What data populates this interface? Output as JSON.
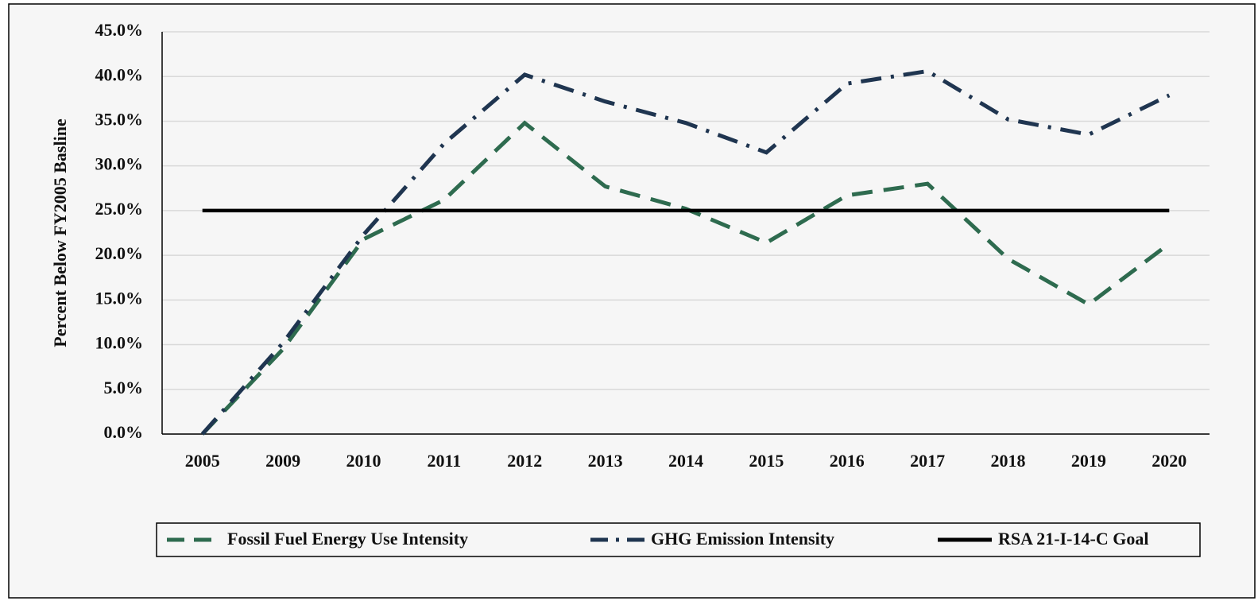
{
  "chart_data": {
    "type": "line",
    "ylabel": "Percent Below FY2005 Basline",
    "categories": [
      "2005",
      "2009",
      "2010",
      "2011",
      "2012",
      "2013",
      "2014",
      "2015",
      "2016",
      "2017",
      "2018",
      "2019",
      "2020"
    ],
    "series": [
      {
        "name": "Fossil Fuel Energy Use Intensity",
        "color": "#2e6b4f",
        "dash": "dashed",
        "values": [
          0,
          9.5,
          21.8,
          26.2,
          34.8,
          27.7,
          25.2,
          21.4,
          26.7,
          28.0,
          19.6,
          14.5,
          21.3
        ]
      },
      {
        "name": "GHG Emission Intensity",
        "color": "#1f3550",
        "dash": "dashdot",
        "values": [
          0,
          10.2,
          22.3,
          32.5,
          40.2,
          37.2,
          34.8,
          31.5,
          39.2,
          40.6,
          35.2,
          33.5,
          37.9
        ]
      },
      {
        "name": "RSA 21-I-14-C Goal",
        "color": "#000000",
        "dash": "solid",
        "values": [
          25,
          25,
          25,
          25,
          25,
          25,
          25,
          25,
          25,
          25,
          25,
          25,
          25
        ]
      }
    ],
    "ylim": [
      0,
      45
    ],
    "yticks": [
      {
        "value": 0,
        "label": "0.0%"
      },
      {
        "value": 5,
        "label": "5.0%"
      },
      {
        "value": 10,
        "label": "10.0%"
      },
      {
        "value": 15,
        "label": "15.0%"
      },
      {
        "value": 20,
        "label": "20.0%"
      },
      {
        "value": 25,
        "label": "25.0%"
      },
      {
        "value": 30,
        "label": "30.0%"
      },
      {
        "value": 35,
        "label": "35.0%"
      },
      {
        "value": 40,
        "label": "40.0%"
      },
      {
        "value": 45,
        "label": "45.0%"
      }
    ],
    "grid": true,
    "legend": "bottom"
  }
}
